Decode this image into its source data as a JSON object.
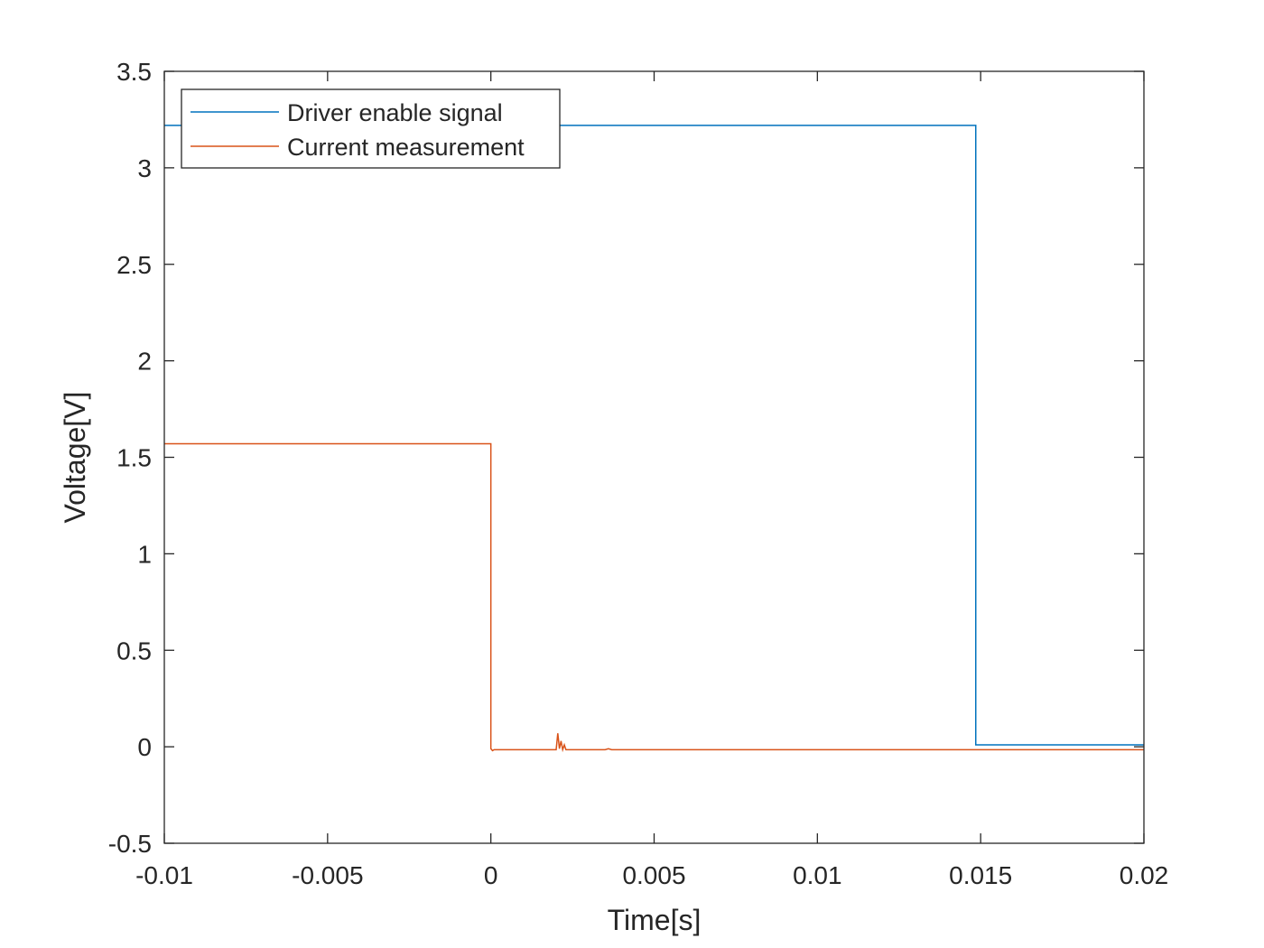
{
  "chart_data": {
    "type": "line",
    "xlabel": "Time[s]",
    "ylabel": "Voltage[V]",
    "xlim": [
      -0.01,
      0.02
    ],
    "ylim": [
      -0.5,
      3.5
    ],
    "xticks": [
      -0.01,
      -0.005,
      0,
      0.005,
      0.01,
      0.015,
      0.02
    ],
    "xtick_labels": [
      "-0.01",
      "-0.005",
      "0",
      "0.005",
      "0.01",
      "0.015",
      "0.02"
    ],
    "yticks": [
      -0.5,
      0,
      0.5,
      1,
      1.5,
      2,
      2.5,
      3,
      3.5
    ],
    "ytick_labels": [
      "-0.5",
      "0",
      "0.5",
      "1",
      "1.5",
      "2",
      "2.5",
      "3",
      "3.5"
    ],
    "grid": false,
    "legend_position": "top-left",
    "series": [
      {
        "name": "Driver enable signal",
        "color": "#0072BD",
        "x": [
          -0.01,
          0.01485,
          0.01485,
          0.02
        ],
        "y": [
          3.22,
          3.22,
          0.01,
          0.01
        ]
      },
      {
        "name": "Current measurement",
        "color": "#D95319",
        "x": [
          -0.01,
          0.0,
          0.0,
          5e-05,
          0.0001,
          0.002,
          0.00205,
          0.0021,
          0.00215,
          0.0022,
          0.00225,
          0.0023,
          0.0035,
          0.0036,
          0.0037,
          0.02
        ],
        "y": [
          1.57,
          1.57,
          -0.01,
          -0.02,
          -0.015,
          -0.015,
          0.07,
          -0.01,
          0.03,
          -0.015,
          0.01,
          -0.015,
          -0.015,
          -0.01,
          -0.015,
          -0.015
        ]
      }
    ]
  }
}
